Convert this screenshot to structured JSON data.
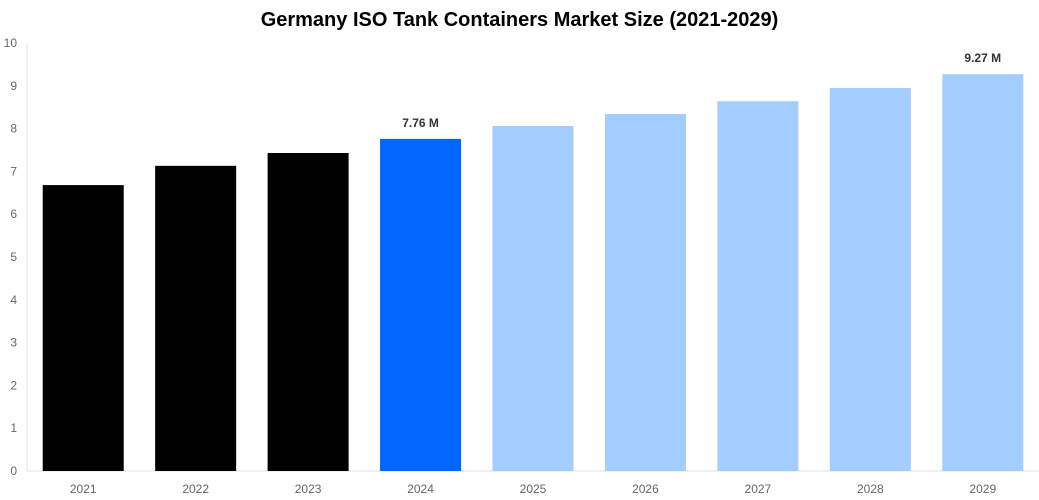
{
  "chart_data": {
    "type": "bar",
    "title": "Germany ISO Tank Containers Market Size (2021-2029)",
    "xlabel": "",
    "ylabel": "",
    "ylim": [
      0,
      10
    ],
    "yticks": [
      "0",
      "1",
      "2",
      "3",
      "4",
      "5",
      "6",
      "7",
      "8",
      "9",
      "10"
    ],
    "categories": [
      "2021",
      "2022",
      "2023",
      "2024",
      "2025",
      "2026",
      "2027",
      "2028",
      "2029"
    ],
    "values": [
      6.68,
      7.13,
      7.43,
      7.76,
      8.06,
      8.34,
      8.64,
      8.95,
      9.27
    ],
    "data_labels": {
      "3": "7.76 M",
      "8": "9.27 M"
    },
    "bar_colors": [
      "#000000",
      "#000000",
      "#000000",
      "#0066ff",
      "#a3cdff",
      "#a3cdff",
      "#a3cdff",
      "#a3cdff",
      "#a3cdff"
    ],
    "grid": false,
    "legend": "none"
  }
}
